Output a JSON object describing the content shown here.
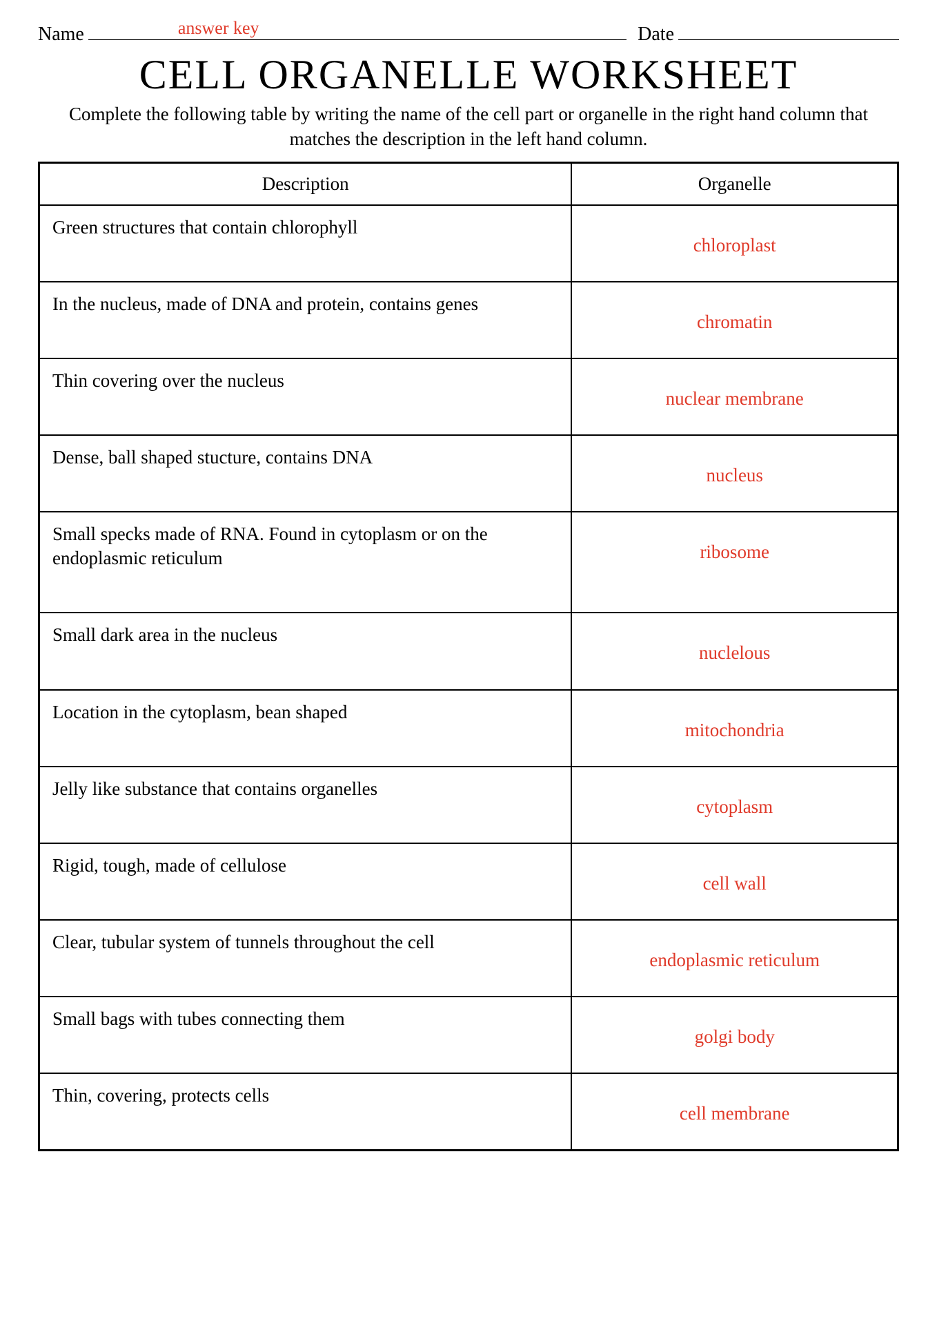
{
  "header": {
    "name_label": "Name",
    "date_label": "Date",
    "answer_key_text": "answer key"
  },
  "title": "CELL ORGANELLE WORKSHEET",
  "instructions": "Complete the following table by writing the name of the cell part or organelle in the right hand column that matches the description in the left hand column.",
  "table": {
    "columns": [
      "Description",
      "Organelle"
    ],
    "rows": [
      {
        "description": "Green structures that contain chlorophyll",
        "organelle": "chloroplast"
      },
      {
        "description": "In the nucleus, made of DNA and protein, contains genes",
        "organelle": "chromatin"
      },
      {
        "description": "Thin covering over the nucleus",
        "organelle": "nuclear membrane"
      },
      {
        "description": "Dense, ball shaped stucture, contains DNA",
        "organelle": "nucleus"
      },
      {
        "description": "Small specks made of RNA. Found in cytoplasm or on the endoplasmic reticulum",
        "organelle": "ribosome"
      },
      {
        "description": "Small dark area in the nucleus",
        "organelle": "nuclelous"
      },
      {
        "description": "Location in the cytoplasm, bean shaped",
        "organelle": "mitochondria"
      },
      {
        "description": "Jelly like substance that contains organelles",
        "organelle": "cytoplasm"
      },
      {
        "description": "Rigid, tough, made of cellulose",
        "organelle": "cell wall"
      },
      {
        "description": "Clear, tubular system of tunnels throughout the cell",
        "organelle": "endoplasmic reticulum"
      },
      {
        "description": "Small bags with tubes connecting them",
        "organelle": "golgi body"
      },
      {
        "description": "Thin, covering, protects cells",
        "organelle": "cell membrane"
      }
    ],
    "column_widths_pct": [
      62,
      38
    ],
    "answer_color": "#e03a2a",
    "border_color": "#000000",
    "header_fontsize": 27,
    "cell_fontsize": 27
  },
  "colors": {
    "text": "#000000",
    "answer": "#e03a2a",
    "background": "#ffffff"
  }
}
